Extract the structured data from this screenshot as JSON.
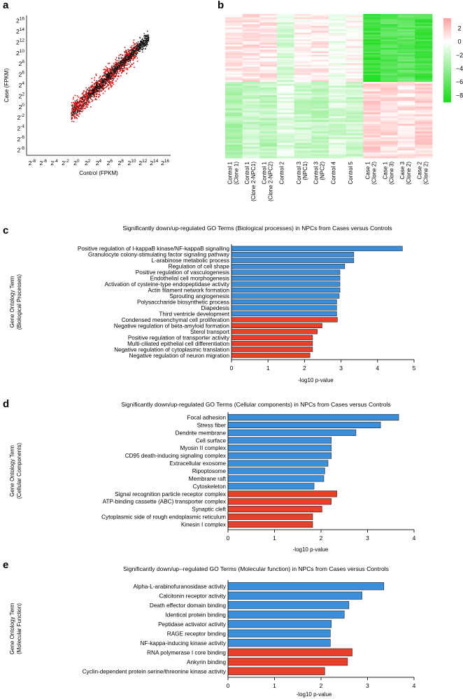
{
  "panel_labels": {
    "a": "a",
    "b": "b",
    "c": "c",
    "d": "d",
    "e": "e"
  },
  "colors": {
    "down": "#3a8fdc",
    "up": "#e8402a",
    "heat_up": "#f0a0a0",
    "heat_down": "#22dd22"
  },
  "chart_data": [
    {
      "id": "a",
      "type": "scatter",
      "title": "",
      "xlabel": "Control (FPKM)",
      "ylabel": "Case (FPKM)",
      "x_tick_labels": [
        "2^-8",
        "2^-6",
        "2^-4",
        "2^-2",
        "2^0",
        "2^2",
        "2^4",
        "2^6",
        "2^8",
        "2^10",
        "2^12",
        "2^14",
        "2^16"
      ],
      "y_tick_labels": [
        "2^16",
        "2^14",
        "2^12",
        "2^10",
        "2^8",
        "2^6",
        "2^4",
        "2^2",
        "2^0",
        "2^-2",
        "2^-4",
        "2^-6",
        "2^-8"
      ],
      "xlim_log2": [
        -9,
        17
      ],
      "ylim_log2": [
        -9,
        17
      ],
      "series": [
        {
          "name": "not significant",
          "color": "#111111",
          "trend": "y = x"
        },
        {
          "name": "differentially expressed",
          "color": "#dd1111",
          "trend": "spread around y = x"
        }
      ]
    },
    {
      "id": "b",
      "type": "heatmap",
      "columns": [
        "Control 1 (Clone 1)",
        "Control 1 (Clone 2-NPC1)",
        "Control 1 (Clone 2-NPC2)",
        "Control 2",
        "Control 3 (NPC1)",
        "Control 3 (NPC2)",
        "Control 4",
        "Control 5",
        "Case 1 (Clone 2)",
        "Case 1 (Clone 3)",
        "Case 3 (Clone 2)",
        "Case 2 (Clone 2)"
      ],
      "column_label_lines": [
        [
          "Control 1",
          "(Clone 1)"
        ],
        [
          "Control 1",
          "(Clone 2-NPC1)"
        ],
        [
          "Control 1",
          "(Clone 2-NPC2)"
        ],
        [
          "Control 2"
        ],
        [
          "Control 3",
          "(NPC1)"
        ],
        [
          "Control 3",
          "(NPC2)"
        ],
        [
          "Control 4"
        ],
        [
          "Control 5"
        ],
        [
          "Case 1",
          "(Clone 2)"
        ],
        [
          "Case 1",
          "(Clone 3)"
        ],
        [
          "Case 3",
          "(Clone 2)"
        ],
        [
          "Case 2",
          "(Clone 2)"
        ]
      ],
      "top_block_mean": [
        0.8,
        1.0,
        0.9,
        -1.5,
        0.5,
        0.8,
        -0.5,
        0.3,
        -7.5,
        -6.5,
        -6.0,
        -7.0
      ],
      "bottom_block_mean": [
        -3.0,
        -2.0,
        -2.5,
        -1.0,
        -2.0,
        -2.5,
        -1.5,
        -2.0,
        1.5,
        1.2,
        1.0,
        1.5
      ],
      "colorbar": {
        "ticks": [
          "2",
          "0",
          "−2",
          "−4",
          "−6",
          "−8"
        ],
        "range": [
          -9,
          3.5
        ]
      }
    },
    {
      "id": "c",
      "type": "bar",
      "orientation": "horizontal",
      "title": "Significantly down/up-regulated GO Terms (Biological processes) in NPCs from Cases versus Controls",
      "ylabel_lines": [
        "Gene Ontology Term",
        "(Biological Processes)"
      ],
      "xlabel": "-log10 p-value",
      "xlim": [
        0,
        5
      ],
      "x_ticks": [
        "0",
        "1",
        "2",
        "3",
        "4",
        "5"
      ],
      "categories": [
        "Positive regulation of I-kappaB kinase/NF-kappaB signalling",
        "Granulocyte colony-stimulating factor signaling pathway",
        "L-arabinose metabolic process",
        "Regulation of cell shape",
        "Positive regulation of vasculogenesis",
        "Endothelial cell morphogenesis",
        "Activation of cysteine-type endopeptidase activity",
        "Actin filament network formation",
        "Sprouting angiogenesis",
        "Polysaccharide biosynthetic process",
        "Diapedesis",
        "Third ventricle development",
        "Condensed mesenchymal cell proliferation",
        "Negative regulation of beta-amyloid formation",
        "Sterol transport",
        "Positive regulation of transporter activity",
        "Multi-ciliated epithelial cell differentiation",
        "Negative regulation of cytoplasmic translation",
        "Negative regulation of neuron migration"
      ],
      "values": [
        4.68,
        3.35,
        3.35,
        3.1,
        2.97,
        2.97,
        2.97,
        2.97,
        2.95,
        2.88,
        2.88,
        2.88,
        2.9,
        2.48,
        2.35,
        2.22,
        2.22,
        2.22,
        2.15
      ],
      "direction": [
        "down",
        "down",
        "down",
        "down",
        "down",
        "down",
        "down",
        "down",
        "down",
        "down",
        "down",
        "down",
        "up",
        "up",
        "up",
        "up",
        "up",
        "up",
        "up"
      ]
    },
    {
      "id": "d",
      "type": "bar",
      "orientation": "horizontal",
      "title": "Significantly down/up-regulated GO Terms (Cellular components) in NPCs from Cases versus Controls",
      "ylabel_lines": [
        "Gene Ontology Term",
        "(Cellular Components)"
      ],
      "xlabel": "-log10 p-value",
      "xlim": [
        0,
        4
      ],
      "x_ticks": [
        "0",
        "1",
        "2",
        "3",
        "4"
      ],
      "categories": [
        "Focal adhesion",
        "Stress fiber",
        "Dendrite membrane",
        "Cell surface",
        "Myosin II complex",
        "CD95 death-inducing signaling complex",
        "Extracellular exosome",
        "Ripoptosome",
        "Membrane raft",
        "Cytoskeleton",
        "Signal recognition particle receptor complex",
        "ATP-binding cassette (ABC) transporter complex",
        "Synaptic cleft",
        "Cytoplasmic side of rough endoplasmic reticulum",
        "Kinesin I complex"
      ],
      "values": [
        3.67,
        3.28,
        2.75,
        2.22,
        2.22,
        2.22,
        2.15,
        2.08,
        2.06,
        1.85,
        2.34,
        2.22,
        2.02,
        1.82,
        1.82
      ],
      "direction": [
        "down",
        "down",
        "down",
        "down",
        "down",
        "down",
        "down",
        "down",
        "down",
        "down",
        "up",
        "up",
        "up",
        "up",
        "up"
      ]
    },
    {
      "id": "e",
      "type": "bar",
      "orientation": "horizontal",
      "title": "Significantly down/up--regulated GO Terms (Molecular function) in NPCs from Cases versus Controls",
      "ylabel_lines": [
        "Gene Ontology Term",
        "(Molecular Function)"
      ],
      "xlabel": "-log10 p-value",
      "xlim": [
        0,
        4
      ],
      "x_ticks": [
        "0",
        "1",
        "2",
        "3",
        "4"
      ],
      "categories": [
        "Alpha-L-arabinofuranosidase activity",
        "Calcitonin receptor activity",
        "Death effector domain binding",
        "Identical protein binding",
        "Peptidase activator activity",
        "RAGE receptor binding",
        "NF-kappa-inducing kinase activity",
        "RNA polymerase I core binding",
        "Ankyrin binding",
        "Cyclin-dependent protein serine/threonine kinase activity"
      ],
      "values": [
        3.35,
        2.88,
        2.6,
        2.5,
        2.22,
        2.2,
        2.2,
        2.67,
        2.57,
        2.08
      ],
      "direction": [
        "down",
        "down",
        "down",
        "down",
        "down",
        "down",
        "down",
        "up",
        "up",
        "up"
      ]
    }
  ]
}
